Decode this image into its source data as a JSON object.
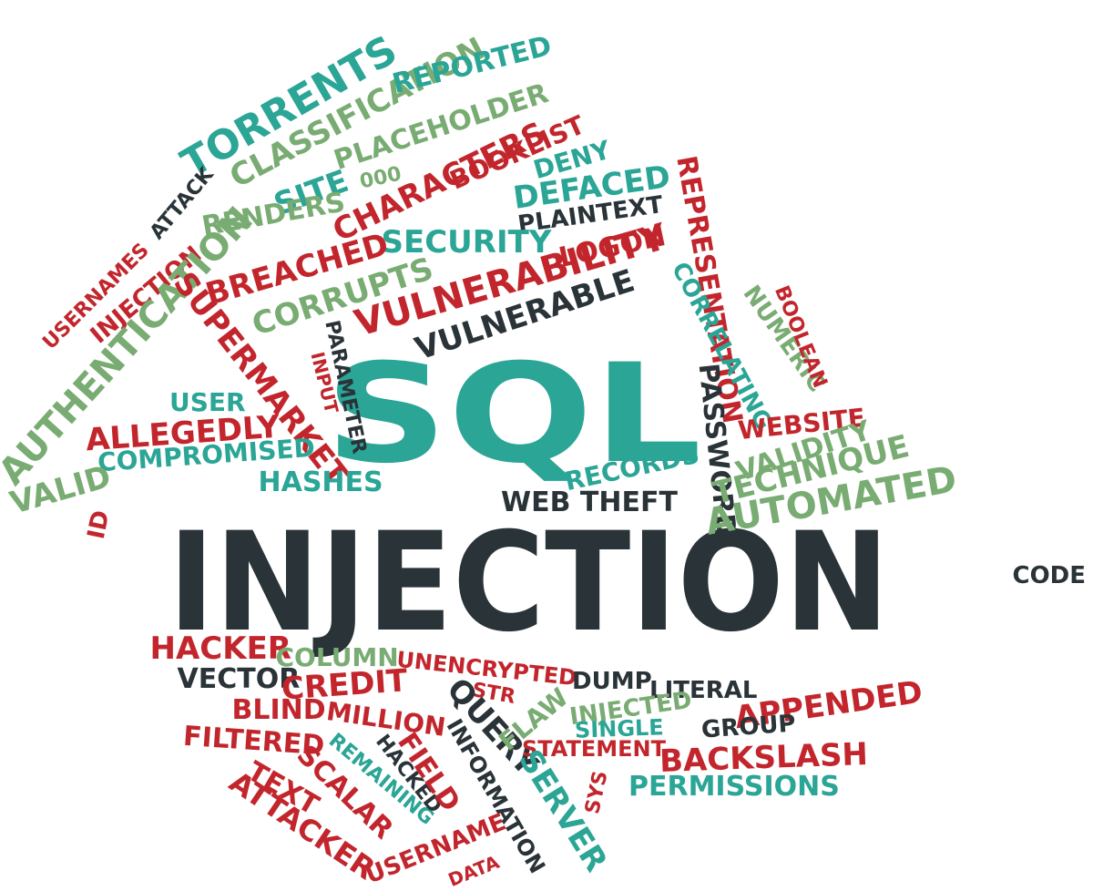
{
  "image": {
    "title": "",
    "description_kind": "word cloud",
    "palette": {
      "teal": "#2aa596",
      "sage": "#79ac72",
      "red": "#c2262c",
      "charcoal": "#293338"
    }
  },
  "words": [
    {
      "text": "SQL",
      "color": "teal"
    },
    {
      "text": "INJECTION",
      "color": "charcoal"
    },
    {
      "text": "TORRENTS",
      "color": "teal"
    },
    {
      "text": "CLASSIFICATION",
      "color": "sage"
    },
    {
      "text": "REPORTED",
      "color": "teal"
    },
    {
      "text": "PLACEHOLDER",
      "color": "sage"
    },
    {
      "text": "ATTACK",
      "color": "charcoal"
    },
    {
      "text": "SITE",
      "color": "teal"
    },
    {
      "text": "000",
      "color": "sage"
    },
    {
      "text": "CHARACTERS",
      "color": "red"
    },
    {
      "text": "BOOKLIST",
      "color": "red"
    },
    {
      "text": "DENY",
      "color": "teal"
    },
    {
      "text": "DEFACED",
      "color": "teal"
    },
    {
      "text": "PLAINTEXT",
      "color": "charcoal"
    },
    {
      "text": "RENDERS",
      "color": "sage"
    },
    {
      "text": "SECURITY",
      "color": "teal"
    },
    {
      "text": "LOGON",
      "color": "red"
    },
    {
      "text": "BREACHED",
      "color": "red"
    },
    {
      "text": "CORRUPTS",
      "color": "sage"
    },
    {
      "text": "VULNERABILITY",
      "color": "red"
    },
    {
      "text": "VULNERABLE",
      "color": "charcoal"
    },
    {
      "text": "REPRESENTATION",
      "color": "red"
    },
    {
      "text": "CORRELATING",
      "color": "teal"
    },
    {
      "text": "NUMERIC",
      "color": "sage"
    },
    {
      "text": "BOOLEAN",
      "color": "red"
    },
    {
      "text": "USERNAMES",
      "color": "red"
    },
    {
      "text": "INJECTION",
      "color": "red"
    },
    {
      "text": "AUTHENTICATION",
      "color": "sage"
    },
    {
      "text": "SUPERMARKET",
      "color": "red"
    },
    {
      "text": "PARAMETER",
      "color": "charcoal"
    },
    {
      "text": "INPUT",
      "color": "red"
    },
    {
      "text": "PASSWORD",
      "color": "charcoal"
    },
    {
      "text": "WEBSITE",
      "color": "red"
    },
    {
      "text": "USER",
      "color": "teal"
    },
    {
      "text": "ALLEGEDLY",
      "color": "red"
    },
    {
      "text": "COMPROMISED",
      "color": "teal"
    },
    {
      "text": "VALID",
      "color": "sage"
    },
    {
      "text": "HASHES",
      "color": "teal"
    },
    {
      "text": "RECORDS",
      "color": "teal"
    },
    {
      "text": "VALIDITY",
      "color": "sage"
    },
    {
      "text": "TECHNIQUE",
      "color": "sage"
    },
    {
      "text": "AUTOMATED",
      "color": "sage"
    },
    {
      "text": "WEB THEFT",
      "color": "charcoal"
    },
    {
      "text": "ID",
      "color": "red"
    },
    {
      "text": "CODE",
      "color": "charcoal"
    },
    {
      "text": "HACKER",
      "color": "red"
    },
    {
      "text": "COLUMN",
      "color": "sage"
    },
    {
      "text": "UNENCRYPTED",
      "color": "red"
    },
    {
      "text": "VECTOR",
      "color": "charcoal"
    },
    {
      "text": "CREDIT",
      "color": "red"
    },
    {
      "text": "STR",
      "color": "red"
    },
    {
      "text": "DUMP",
      "color": "charcoal"
    },
    {
      "text": "LITERAL",
      "color": "charcoal"
    },
    {
      "text": "APPENDED",
      "color": "red"
    },
    {
      "text": "BLIND",
      "color": "red"
    },
    {
      "text": "MILLION",
      "color": "red"
    },
    {
      "text": "QUERY",
      "color": "charcoal"
    },
    {
      "text": "FLAW",
      "color": "sage"
    },
    {
      "text": "INJECTED",
      "color": "sage"
    },
    {
      "text": "SINGLE",
      "color": "teal"
    },
    {
      "text": "GROUP",
      "color": "charcoal"
    },
    {
      "text": "FILTERED",
      "color": "red"
    },
    {
      "text": "REMAINING",
      "color": "teal"
    },
    {
      "text": "HACKED",
      "color": "charcoal"
    },
    {
      "text": "INFORMATION",
      "color": "charcoal"
    },
    {
      "text": "FIELD",
      "color": "red"
    },
    {
      "text": "STATEMENT",
      "color": "red"
    },
    {
      "text": "BACKSLASH",
      "color": "red"
    },
    {
      "text": "TEXT",
      "color": "red"
    },
    {
      "text": "SCALAR",
      "color": "red"
    },
    {
      "text": "SERVER",
      "color": "teal"
    },
    {
      "text": "SYS",
      "color": "red"
    },
    {
      "text": "PERMISSIONS",
      "color": "teal"
    },
    {
      "text": "ATTACKER",
      "color": "red"
    },
    {
      "text": "USERNAME",
      "color": "red"
    },
    {
      "text": "DATA",
      "color": "red"
    }
  ]
}
